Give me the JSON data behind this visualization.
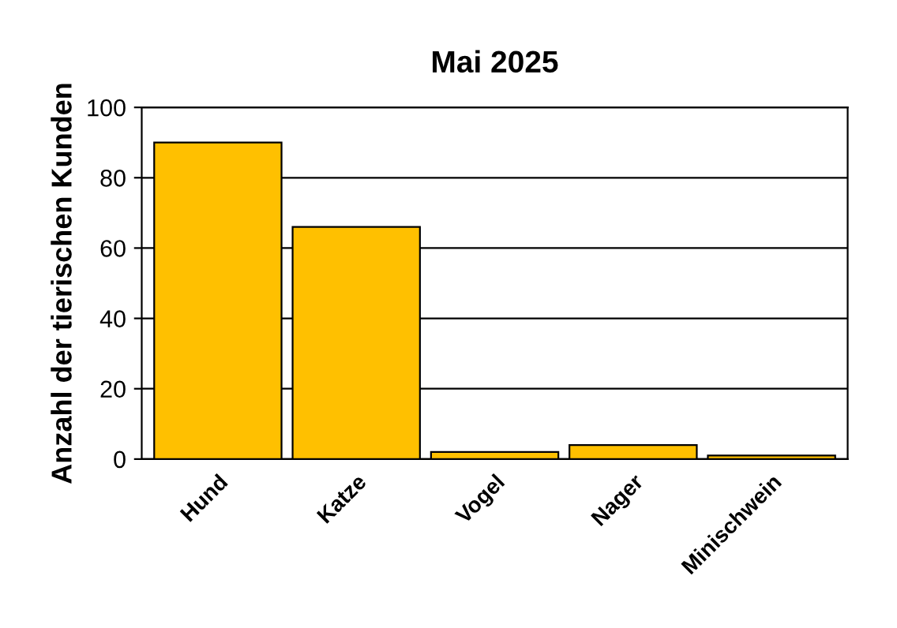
{
  "chart_data": {
    "type": "bar",
    "title": "Mai 2025",
    "ylabel": "Anzahl der tierischen Kunden",
    "categories": [
      "Hund",
      "Katze",
      "Vogel",
      "Nager",
      "Minischwein"
    ],
    "values": [
      90,
      66,
      2,
      4,
      1
    ],
    "color": "#ffc000",
    "ylim": [
      0,
      100
    ],
    "yticks": [
      0,
      20,
      40,
      60,
      80,
      100
    ],
    "grid": "y",
    "legend": false
  }
}
